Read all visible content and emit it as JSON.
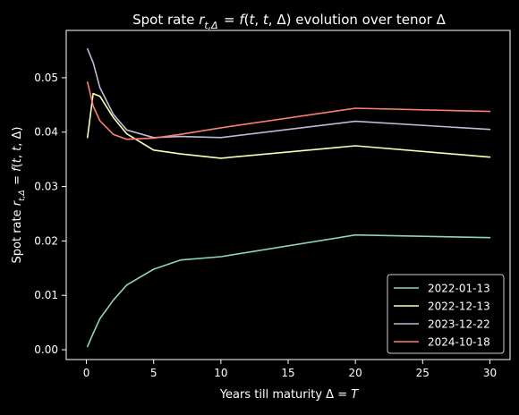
{
  "chart_data": {
    "type": "line",
    "title": "Spot rate r_{t,Δ} = f(t, t, Δ) evolution over tenor Δ",
    "xlabel": "Years till maturity Δ = T",
    "ylabel": "Spot rate r_{t,Δ} = f(t, t, Δ)",
    "xlim": [
      -1.5,
      31.5
    ],
    "ylim": [
      -0.0018,
      0.0587
    ],
    "xticks": [
      0,
      5,
      10,
      15,
      20,
      25,
      30
    ],
    "yticks": [
      0.0,
      0.01,
      0.02,
      0.03,
      0.04,
      0.05
    ],
    "ytick_labels": [
      "0.00",
      "0.01",
      "0.02",
      "0.03",
      "0.04",
      "0.05"
    ],
    "x": [
      0.083,
      0.5,
      1,
      2,
      3,
      5,
      7,
      10,
      20,
      30
    ],
    "series": [
      {
        "name": "2022-01-13",
        "color": "#8dd3c7",
        "values": [
          0.0006,
          0.003,
          0.0057,
          0.0091,
          0.0119,
          0.0148,
          0.0165,
          0.0171,
          0.0211,
          0.0206
        ]
      },
      {
        "name": "2022-12-13",
        "color": "#ffffb3",
        "values": [
          0.039,
          0.0471,
          0.0466,
          0.0427,
          0.0397,
          0.0367,
          0.036,
          0.0352,
          0.0375,
          0.0354
        ]
      },
      {
        "name": "2023-12-22",
        "color": "#bebada",
        "values": [
          0.0553,
          0.0528,
          0.0482,
          0.0433,
          0.0404,
          0.039,
          0.0392,
          0.039,
          0.042,
          0.0405
        ]
      },
      {
        "name": "2024-10-18",
        "color": "#fb8072",
        "values": [
          0.0492,
          0.0448,
          0.0421,
          0.0396,
          0.0387,
          0.0389,
          0.0396,
          0.0408,
          0.0444,
          0.0438
        ]
      }
    ],
    "grid": false,
    "legend_position": "lower right"
  }
}
